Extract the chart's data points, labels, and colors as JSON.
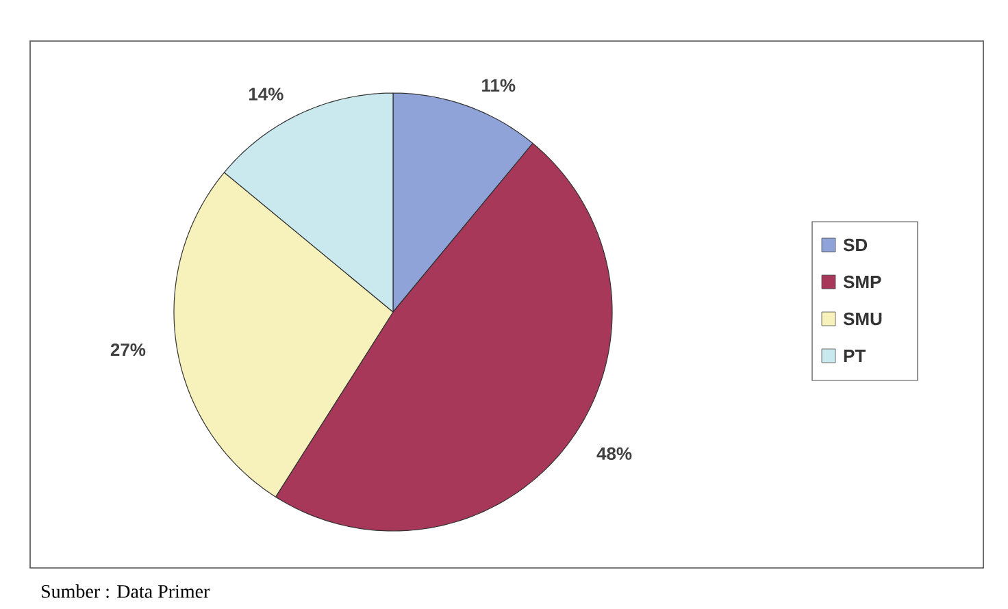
{
  "chart_data": {
    "type": "pie",
    "categories": [
      "SD",
      "SMP",
      "SMU",
      "PT"
    ],
    "values": [
      11,
      48,
      27,
      14
    ],
    "colors": [
      "#8fa3d8",
      "#a8385a",
      "#f7f2bc",
      "#c9e9ee"
    ],
    "value_labels": [
      "11%",
      "48%",
      "27%",
      "14%"
    ],
    "legend": "right",
    "annotations": [
      "Sumber : Data Primer"
    ]
  }
}
